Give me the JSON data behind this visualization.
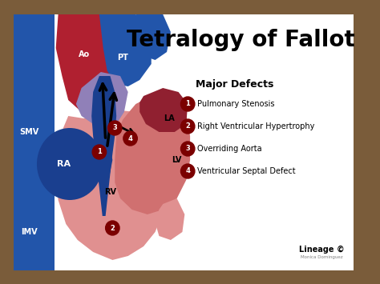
{
  "title": "Tetralogy of Fallot",
  "title_fontsize": 20,
  "title_fontweight": "bold",
  "subtitle": "Major Defects",
  "subtitle_fontsize": 9,
  "defects": [
    "Pulmonary Stenosis",
    "Right Ventricular Hypertrophy",
    "Overriding Aorta",
    "Ventricular Septal Defect"
  ],
  "bg_color": "#7A5C3A",
  "card_color": "#FFFFFF",
  "lineage_text": "Lineage ©",
  "lineage_sub": "Monica Dominguez",
  "defect_circle_color": "#7B0000",
  "blue_vessel": "#2255AA",
  "blue_dark": "#1A3F8F",
  "red_vessel": "#B02030",
  "red_light": "#E09090",
  "red_pink": "#D07070",
  "red_dark": "#902030",
  "purple": "#7060A0",
  "purple_light": "#9080B8"
}
